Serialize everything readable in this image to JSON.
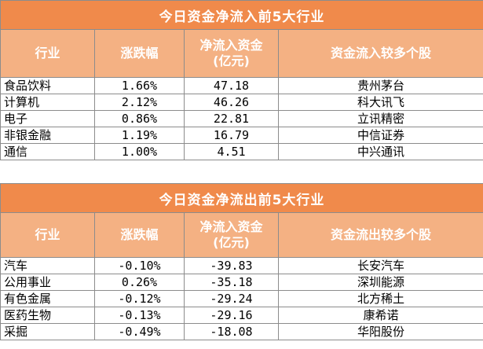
{
  "inflow": {
    "title": "今日资金净流入前5大行业",
    "headers": {
      "sector": "行业",
      "change": "涨跌幅",
      "net_flow_line1": "净流入资金",
      "net_flow_line2": "(亿元)",
      "stocks": "资金流入较多个股"
    },
    "rows": [
      {
        "sector": "食品饮料",
        "change": "1.66%",
        "net_flow": "47.18",
        "stock": "贵州茅台"
      },
      {
        "sector": "计算机",
        "change": "2.12%",
        "net_flow": "46.26",
        "stock": "科大讯飞"
      },
      {
        "sector": "电子",
        "change": "0.86%",
        "net_flow": "22.81",
        "stock": "立讯精密"
      },
      {
        "sector": "非银金融",
        "change": "1.19%",
        "net_flow": "16.79",
        "stock": "中信证券"
      },
      {
        "sector": "通信",
        "change": "1.00%",
        "net_flow": "4.51",
        "stock": "中兴通讯"
      }
    ]
  },
  "outflow": {
    "title": "今日资金净流出前5大行业",
    "headers": {
      "sector": "行业",
      "change": "涨跌幅",
      "net_flow_line1": "净流入资金",
      "net_flow_line2": "(亿元)",
      "stocks": "资金流出较多个股"
    },
    "rows": [
      {
        "sector": "汽车",
        "change": "-0.10%",
        "net_flow": "-39.83",
        "stock": "长安汽车"
      },
      {
        "sector": "公用事业",
        "change": "0.26%",
        "net_flow": "-35.18",
        "stock": "深圳能源"
      },
      {
        "sector": "有色金属",
        "change": "-0.12%",
        "net_flow": "-29.24",
        "stock": "北方稀土"
      },
      {
        "sector": "医药生物",
        "change": "-0.13%",
        "net_flow": "-29.16",
        "stock": "康希诺"
      },
      {
        "sector": "采掘",
        "change": "-0.49%",
        "net_flow": "-18.08",
        "stock": "华阳股份"
      }
    ]
  },
  "colors": {
    "title_bg": "#f08a4b",
    "header_bg": "#f4b183",
    "border": "#8c8c8c"
  }
}
